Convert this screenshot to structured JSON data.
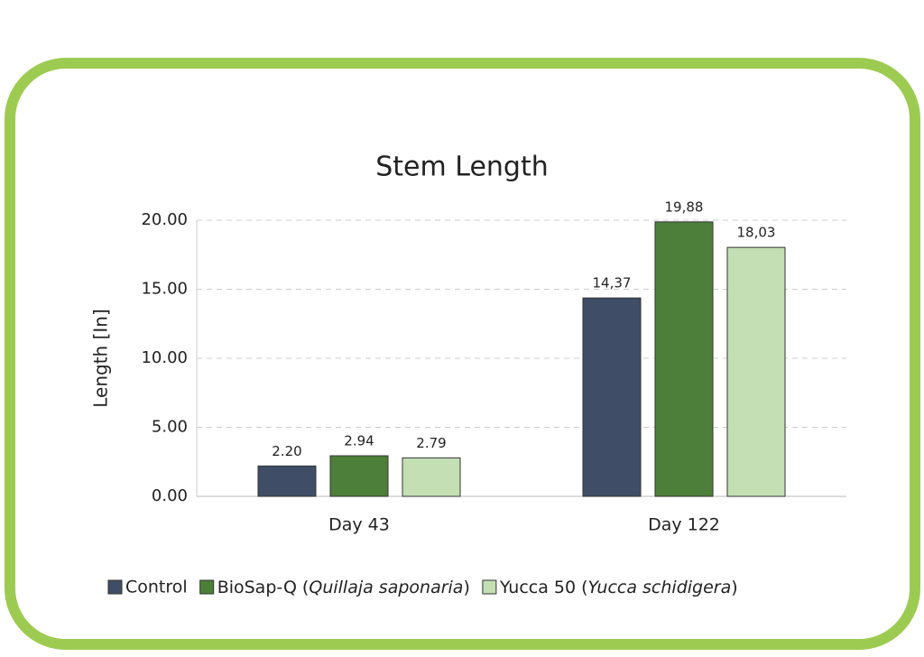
{
  "chart_data": {
    "type": "bar",
    "title": "Stem Length",
    "y_label": "Length [In]",
    "categories": [
      "Day 43",
      "Day 122"
    ],
    "series": [
      {
        "name": "Control",
        "color": "#3f4e66",
        "values": [
          2.2,
          14.37
        ],
        "value_labels": [
          "2.20",
          "14,37"
        ]
      },
      {
        "name": "BioSap-Q (Quillaja saponaria)",
        "color": "#4e7f3a",
        "values": [
          2.94,
          19.88
        ],
        "value_labels": [
          "2.94",
          "19,88"
        ]
      },
      {
        "name": "Yucca 50 (Yucca schidigera)",
        "color": "#c3dfb3",
        "values": [
          2.79,
          18.03
        ],
        "value_labels": [
          "2.79",
          "18,03"
        ]
      }
    ],
    "ylim": [
      0,
      20
    ],
    "yticks": [
      {
        "value": 0,
        "label": "0.00"
      },
      {
        "value": 5,
        "label": "5.00"
      },
      {
        "value": 10,
        "label": "10.00"
      },
      {
        "value": 15,
        "label": "15.00"
      },
      {
        "value": 20,
        "label": "20.00"
      }
    ],
    "grid": true,
    "legend": "bottom"
  }
}
